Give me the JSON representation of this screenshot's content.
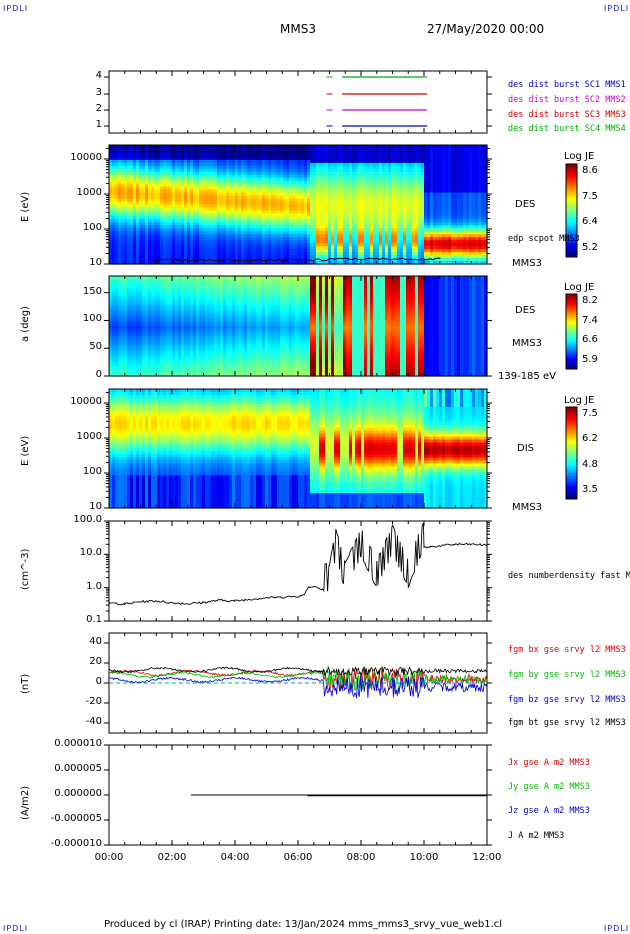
{
  "corners": {
    "tl": "IPDLI",
    "tr": "IPDLI",
    "bl": "IPDLI",
    "br": "IPDLI"
  },
  "header": {
    "spacecraft": "MMS3",
    "date": "27/May/2020 00:00"
  },
  "footer": {
    "text": "Produced by cl (IRAP)   Printing date: 13/Jan/2024   mms_mms3_srvy_vue_web1.cl"
  },
  "chart_data": [
    {
      "type": "line",
      "panel": "availability",
      "yticks": [
        "1",
        "2",
        "3",
        "4"
      ],
      "series": [
        {
          "name": "des dist burst SC1 MMS1",
          "color": "#0000cc",
          "y": 1,
          "dash_x": 7.0,
          "x": [
            7.4,
            10.1
          ]
        },
        {
          "name": "des dist burst SC2 MMS2",
          "color": "#cc00cc",
          "y": 2,
          "dash_x": 7.0,
          "x": [
            7.4,
            10.1
          ]
        },
        {
          "name": "des dist burst SC3 MMS3",
          "color": "#cc0000",
          "y": 3,
          "dash_x": 7.0,
          "x": [
            7.4,
            10.1
          ]
        },
        {
          "name": "des dist burst SC4 MMS4",
          "color": "#00aa00",
          "y": 4,
          "dash_x": 7.0,
          "x": [
            7.4,
            10.1
          ]
        }
      ]
    },
    {
      "type": "heatmap",
      "panel": "des_energy",
      "ylabel": "E (eV)",
      "yticks": [
        "10",
        "100",
        "1000",
        "10000"
      ],
      "right_labels": [
        "DES",
        "MMS3"
      ],
      "overlay_label": "edp scpot MMS3",
      "colorbar": {
        "title": "Log JE",
        "ticks": [
          "8.6",
          "7.5",
          "6.4",
          "5.2"
        ]
      }
    },
    {
      "type": "heatmap",
      "panel": "des_pitch",
      "ylabel": "a (deg)",
      "yticks": [
        "0",
        "50",
        "100",
        "150"
      ],
      "right_labels": [
        "DES",
        "MMS3",
        "139-185 eV"
      ],
      "colorbar": {
        "title": "Log JE",
        "ticks": [
          "8.2",
          "7.4",
          "6.6",
          "5.9"
        ]
      }
    },
    {
      "type": "heatmap",
      "panel": "dis_energy",
      "ylabel": "E (eV)",
      "yticks": [
        "10",
        "100",
        "1000",
        "10000"
      ],
      "right_labels": [
        "DIS",
        "MMS3"
      ],
      "colorbar": {
        "title": "Log JE",
        "ticks": [
          "7.5",
          "6.2",
          "4.8",
          "3.5"
        ]
      }
    },
    {
      "type": "line",
      "panel": "density",
      "ylabel": "(cm^-3)",
      "yticks": [
        "0.1",
        "1.0",
        "10.0",
        "100.0"
      ],
      "series": [
        {
          "name": "des numberdensity fast M",
          "color": "#000000"
        }
      ],
      "x": [
        0,
        0.5,
        1,
        1.5,
        2,
        2.5,
        3,
        3.5,
        4,
        4.5,
        5,
        5.5,
        6,
        6.2,
        6.3,
        6.5,
        7,
        7.2,
        7.5,
        8,
        8.5,
        9,
        9.5,
        10,
        10.5,
        11,
        11.5,
        12
      ],
      "y": [
        0.35,
        0.32,
        0.38,
        0.4,
        0.35,
        0.33,
        0.36,
        0.42,
        0.4,
        0.45,
        0.5,
        0.52,
        0.55,
        0.6,
        1.0,
        1.1,
        0.8,
        10,
        0.9,
        10,
        1.1,
        12,
        1.2,
        16,
        18,
        20,
        20,
        19
      ]
    },
    {
      "type": "line",
      "panel": "magnetic_field",
      "ylabel": "(nT)",
      "yticks": [
        "-40",
        "-20",
        "0",
        "20",
        "40"
      ],
      "series": [
        {
          "name": "fgm bx gse srvy l2 MMS3",
          "color": "#dd0000"
        },
        {
          "name": "fgm by gse srvy l2 MMS3",
          "color": "#00bb00"
        },
        {
          "name": "fgm bz gse srvy l2 MMS3",
          "color": "#0000dd"
        },
        {
          "name": "fgm bt gse srvy l2 MMS3",
          "color": "#000000"
        }
      ]
    },
    {
      "type": "line",
      "panel": "current_density",
      "ylabel": "(A/m2)",
      "yticks": [
        "-0.000010",
        "-0.000005",
        "0.000000",
        "0.000005",
        "0.000010"
      ],
      "series": [
        {
          "name": "Jx gse A m2 MMS3",
          "color": "#dd0000"
        },
        {
          "name": "Jy gse A m2 MMS3",
          "color": "#00bb00"
        },
        {
          "name": "Jz gse A m2 MMS3",
          "color": "#0000dd"
        },
        {
          "name": "J A m2 MMS3",
          "color": "#000000"
        }
      ]
    }
  ],
  "xaxis": {
    "ticks": [
      "00:00",
      "02:00",
      "04:00",
      "06:00",
      "08:00",
      "10:00",
      "12:00"
    ]
  }
}
